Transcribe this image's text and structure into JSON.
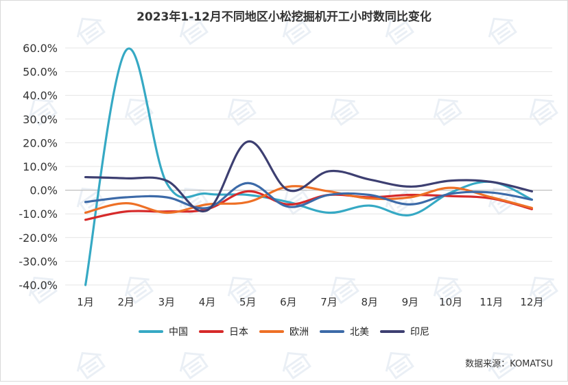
{
  "chart_data": {
    "type": "line",
    "title": "2023年1-12月不同地区小松挖掘机开工小时数同比变化",
    "categories": [
      "1月",
      "2月",
      "3月",
      "4月",
      "5月",
      "6月",
      "7月",
      "8月",
      "9月",
      "10月",
      "11月",
      "12月"
    ],
    "ylim": [
      -40,
      60
    ],
    "yticks": [
      "60.0%",
      "50.0%",
      "40.0%",
      "30.0%",
      "20.0%",
      "10.0%",
      "0.0%",
      "-10.0%",
      "-20.0%",
      "-30.0%",
      "-40.0%"
    ],
    "ytick_values": [
      60,
      50,
      40,
      30,
      20,
      10,
      0,
      -10,
      -20,
      -30,
      -40
    ],
    "grid": true,
    "legend_position": "bottom",
    "series": [
      {
        "name": "中国",
        "color": "#36a9c4",
        "values": [
          -40,
          59,
          3,
          -1.5,
          -2,
          -5,
          -9.5,
          -6.5,
          -10.5,
          -1,
          3.5,
          -4
        ]
      },
      {
        "name": "日本",
        "color": "#d62a2a",
        "values": [
          -12.5,
          -9,
          -9,
          -8,
          -0.5,
          -6,
          -2,
          -3,
          -2,
          -2.5,
          -3.5,
          -8
        ]
      },
      {
        "name": "欧洲",
        "color": "#ee7026",
        "values": [
          -9.5,
          -5.5,
          -9.5,
          -6,
          -5,
          1.5,
          -0.5,
          -3.5,
          -3,
          1,
          -3,
          -7.5
        ]
      },
      {
        "name": "北美",
        "color": "#3c6aa8",
        "values": [
          -5,
          -3,
          -3,
          -7.5,
          3,
          -7,
          -2,
          -2,
          -6,
          -1.5,
          -1,
          -4
        ]
      },
      {
        "name": "印尼",
        "color": "#3d3f71",
        "values": [
          5.5,
          5,
          4,
          -8.5,
          20.5,
          0,
          8,
          4.5,
          1.5,
          4,
          3.5,
          -0.5
        ]
      }
    ]
  },
  "source_note": "数据来源：KOMATSU"
}
